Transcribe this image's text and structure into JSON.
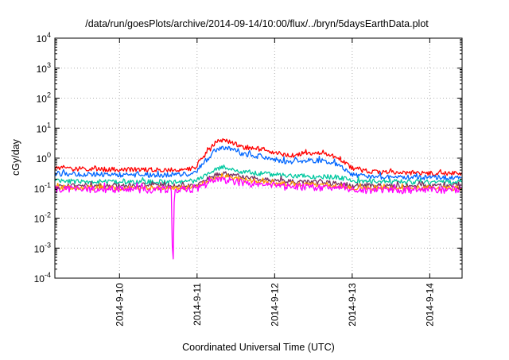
{
  "chart_data": {
    "type": "line",
    "title": "/data/run/goesPlots/archive/2014-09-14/10:00/flux/../bryn/5daysEarthData.plot",
    "xlabel": "Coordinated Universal Time (UTC)",
    "ylabel": "cGy/day",
    "yscale": "log",
    "ylim": [
      0.0001,
      10000
    ],
    "xlim": [
      "2014-09-09T04:00",
      "2014-09-14T10:00"
    ],
    "x_tick_labels": [
      "2014-9-10",
      "2014-9-11",
      "2014-9-12",
      "2014-9-13",
      "2014-9-14"
    ],
    "x_tick_values": [
      "2014-09-10T00:00",
      "2014-09-11T00:00",
      "2014-09-12T00:00",
      "2014-09-13T00:00",
      "2014-09-14T00:00"
    ],
    "y_tick_labels": [
      {
        "base": "10",
        "exp": "4"
      },
      {
        "base": "10",
        "exp": "3"
      },
      {
        "base": "10",
        "exp": "2"
      },
      {
        "base": "10",
        "exp": "1"
      },
      {
        "base": "10",
        "exp": "0"
      },
      {
        "base": "10",
        "exp": "-1"
      },
      {
        "base": "10",
        "exp": "-2"
      },
      {
        "base": "10",
        "exp": "-3"
      },
      {
        "base": "10",
        "exp": "-4"
      }
    ],
    "y_tick_values": [
      10000,
      1000,
      100,
      10,
      1,
      0.1,
      0.01,
      0.001,
      0.0001
    ],
    "grid": true,
    "legend": "none",
    "series": [
      {
        "color": "#ff0000",
        "x": [
          "2014-09-09T04:00",
          "2014-09-10T00:00",
          "2014-09-10T12:00",
          "2014-09-10T23:00",
          "2014-09-11T03:00",
          "2014-09-11T06:00",
          "2014-09-11T09:00",
          "2014-09-11T14:00",
          "2014-09-11T20:00",
          "2014-09-12T04:00",
          "2014-09-12T10:00",
          "2014-09-12T16:00",
          "2014-09-12T20:00",
          "2014-09-13T00:00",
          "2014-09-13T06:00",
          "2014-09-13T18:00",
          "2014-09-14T10:00"
        ],
        "values": [
          0.45,
          0.42,
          0.4,
          0.45,
          1.5,
          3.5,
          3.8,
          2.4,
          1.9,
          1.2,
          1.5,
          1.4,
          1.0,
          0.45,
          0.35,
          0.33,
          0.3
        ]
      },
      {
        "color": "#0066ff",
        "x": [
          "2014-09-09T04:00",
          "2014-09-10T00:00",
          "2014-09-10T12:00",
          "2014-09-10T23:00",
          "2014-09-11T03:00",
          "2014-09-11T06:00",
          "2014-09-11T09:00",
          "2014-09-11T14:00",
          "2014-09-11T20:00",
          "2014-09-12T04:00",
          "2014-09-12T10:00",
          "2014-09-12T16:00",
          "2014-09-12T20:00",
          "2014-09-13T00:00",
          "2014-09-13T06:00",
          "2014-09-13T18:00",
          "2014-09-14T10:00"
        ],
        "values": [
          0.3,
          0.28,
          0.27,
          0.3,
          0.9,
          2.0,
          2.2,
          1.4,
          1.1,
          0.75,
          0.85,
          0.8,
          0.6,
          0.28,
          0.24,
          0.23,
          0.22
        ]
      },
      {
        "color": "#00c8a0",
        "x": [
          "2014-09-09T04:00",
          "2014-09-10T00:00",
          "2014-09-10T12:00",
          "2014-09-10T23:00",
          "2014-09-11T03:00",
          "2014-09-11T06:00",
          "2014-09-11T09:00",
          "2014-09-11T14:00",
          "2014-09-11T20:00",
          "2014-09-12T04:00",
          "2014-09-12T10:00",
          "2014-09-12T16:00",
          "2014-09-12T20:00",
          "2014-09-13T00:00",
          "2014-09-13T06:00",
          "2014-09-13T18:00",
          "2014-09-14T10:00"
        ],
        "values": [
          0.17,
          0.16,
          0.16,
          0.17,
          0.3,
          0.45,
          0.48,
          0.36,
          0.3,
          0.26,
          0.25,
          0.24,
          0.22,
          0.18,
          0.17,
          0.16,
          0.16
        ]
      },
      {
        "color": "#7a3060",
        "x": [
          "2014-09-09T04:00",
          "2014-09-10T00:00",
          "2014-09-10T12:00",
          "2014-09-10T23:00",
          "2014-09-11T03:00",
          "2014-09-11T06:00",
          "2014-09-11T09:00",
          "2014-09-11T14:00",
          "2014-09-11T20:00",
          "2014-09-12T04:00",
          "2014-09-12T10:00",
          "2014-09-12T16:00",
          "2014-09-12T20:00",
          "2014-09-13T00:00",
          "2014-09-13T06:00",
          "2014-09-13T18:00",
          "2014-09-14T10:00"
        ],
        "values": [
          0.12,
          0.12,
          0.12,
          0.12,
          0.2,
          0.28,
          0.3,
          0.24,
          0.2,
          0.17,
          0.16,
          0.15,
          0.14,
          0.12,
          0.12,
          0.12,
          0.12
        ]
      },
      {
        "color": "#ff9900",
        "x": [
          "2014-09-09T04:00",
          "2014-09-10T00:00",
          "2014-09-10T12:00",
          "2014-09-10T23:00",
          "2014-09-11T03:00",
          "2014-09-11T06:00",
          "2014-09-11T09:00",
          "2014-09-11T14:00",
          "2014-09-11T20:00",
          "2014-09-12T04:00",
          "2014-09-12T10:00",
          "2014-09-12T16:00",
          "2014-09-12T20:00",
          "2014-09-13T00:00",
          "2014-09-13T06:00",
          "2014-09-13T18:00",
          "2014-09-14T10:00"
        ],
        "values": [
          0.105,
          0.1,
          0.1,
          0.105,
          0.17,
          0.22,
          0.24,
          0.19,
          0.16,
          0.14,
          0.13,
          0.13,
          0.12,
          0.105,
          0.1,
          0.1,
          0.1
        ]
      },
      {
        "color": "#ff00ff",
        "x": [
          "2014-09-09T04:00",
          "2014-09-10T00:00",
          "2014-09-10T12:00",
          "2014-09-10T16:00",
          "2014-09-10T16:30",
          "2014-09-10T17:00",
          "2014-09-10T23:00",
          "2014-09-11T03:00",
          "2014-09-11T06:00",
          "2014-09-11T09:00",
          "2014-09-11T14:00",
          "2014-09-11T20:00",
          "2014-09-12T04:00",
          "2014-09-12T10:00",
          "2014-09-12T16:00",
          "2014-09-12T20:00",
          "2014-09-13T00:00",
          "2014-09-13T06:00",
          "2014-09-13T18:00",
          "2014-09-14T10:00"
        ],
        "values": [
          0.09,
          0.09,
          0.09,
          0.09,
          0.0001,
          0.09,
          0.09,
          0.14,
          0.18,
          0.19,
          0.15,
          0.13,
          0.11,
          0.11,
          0.1,
          0.1,
          0.09,
          0.085,
          0.085,
          0.085
        ]
      }
    ]
  }
}
